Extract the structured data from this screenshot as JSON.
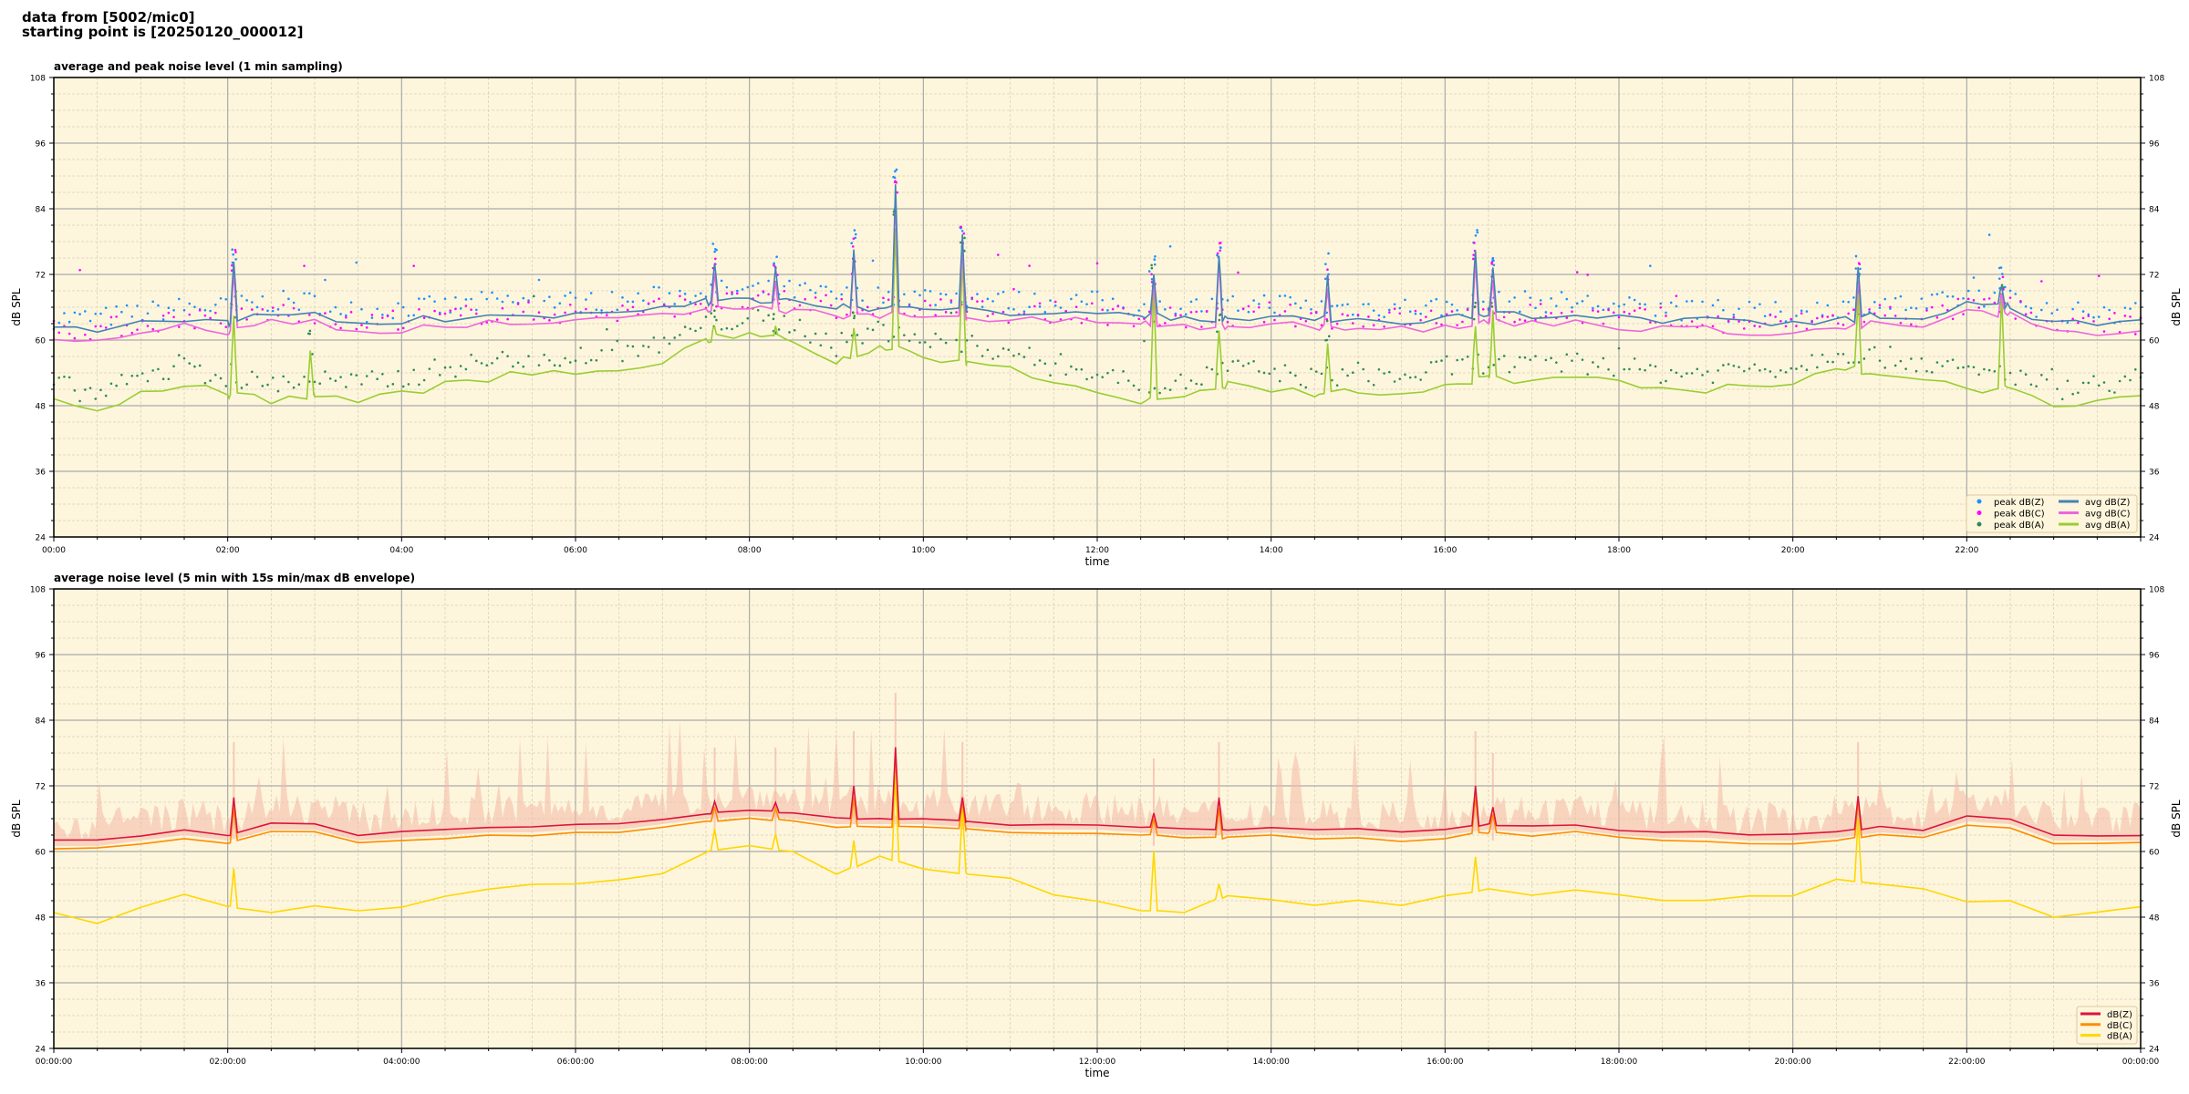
{
  "header": {
    "line1": "data from [5002/mic0]",
    "line2": "starting point is [20250120_000012]"
  },
  "colors": {
    "background": "#fdf6dc",
    "peakZ": "#1e90ff",
    "peakC": "#ff00ff",
    "peakA": "#2e8b57",
    "avgZ": "#4682b4",
    "avgC": "#ee66dd",
    "avgA": "#9acd32",
    "dbZ": "#dc143c",
    "dbC": "#ff8c00",
    "dbA": "#ffd700",
    "envelope": "#f4b8a8"
  },
  "chart_data": [
    {
      "type": "line+scatter",
      "title": "average and peak noise level (1 min sampling)",
      "xlabel": "time",
      "ylabel": "dB SPL",
      "ylim": [
        24,
        108
      ],
      "yticks": [
        "24",
        "36",
        "48",
        "60",
        "72",
        "84",
        "96",
        "108"
      ],
      "xlim_hours": [
        0,
        24
      ],
      "xticks": [
        "00:00",
        "02:00",
        "04:00",
        "06:00",
        "08:00",
        "10:00",
        "12:00",
        "14:00",
        "16:00",
        "18:00",
        "20:00",
        "22:00"
      ],
      "grid": true,
      "legend": "bottom-right",
      "x_step_hours": 0.5,
      "series": [
        {
          "name": "peak dB(Z)",
          "kind": "scatter",
          "color": "#1e90ff",
          "values": [
            64,
            64,
            65,
            66,
            66,
            67,
            67,
            65,
            66,
            66,
            67,
            67,
            67,
            67,
            68,
            69,
            69,
            69,
            68,
            68,
            68,
            68,
            67,
            67,
            67,
            66,
            66,
            66,
            67,
            66,
            66,
            66,
            66,
            67,
            67,
            67,
            66,
            66,
            65,
            65,
            65,
            66,
            67,
            66,
            68,
            68,
            65,
            65,
            65
          ]
        },
        {
          "name": "peak dB(C)",
          "kind": "scatter",
          "color": "#ff00ff",
          "values": [
            62,
            62,
            63,
            64,
            64,
            65,
            65,
            63,
            64,
            64,
            65,
            65,
            65,
            65,
            66,
            67,
            67,
            67,
            66,
            66,
            66,
            66,
            65,
            65,
            65,
            64,
            64,
            64,
            65,
            64,
            64,
            64,
            64,
            65,
            65,
            65,
            64,
            64,
            63,
            63,
            63,
            64,
            65,
            64,
            66,
            66,
            63,
            63,
            63
          ]
        },
        {
          "name": "peak dB(A)",
          "kind": "scatter",
          "color": "#2e8b57",
          "values": [
            52,
            50,
            53,
            55,
            53,
            52,
            53,
            52,
            53,
            55,
            56,
            57,
            57,
            58,
            59,
            63,
            64,
            63,
            59,
            62,
            60,
            59,
            58,
            55,
            54,
            52,
            52,
            55,
            54,
            53,
            54,
            53,
            55,
            56,
            55,
            56,
            55,
            54,
            54,
            55,
            55,
            58,
            57,
            56,
            54,
            54,
            51,
            52,
            53
          ]
        },
        {
          "name": "avg dB(Z)",
          "kind": "line",
          "color": "#4682b4",
          "values": [
            62,
            62,
            63,
            64,
            63,
            65,
            65,
            63,
            63.5,
            64,
            64.5,
            64.5,
            65,
            65,
            66,
            67,
            67.5,
            67,
            66,
            66,
            66,
            65.5,
            65,
            65,
            65,
            64.5,
            64,
            64,
            64.5,
            64,
            64,
            63.5,
            64,
            65,
            64.5,
            65,
            64,
            63.5,
            63.5,
            63,
            63,
            63.5,
            64.5,
            64,
            66.5,
            66,
            63,
            63,
            63
          ],
          "spikes": [
            [
              2.07,
              75
            ],
            [
              7.6,
              74
            ],
            [
              8.3,
              73
            ],
            [
              9.2,
              77
            ],
            [
              9.68,
              88
            ],
            [
              10.45,
              79
            ],
            [
              12.65,
              72
            ],
            [
              13.4,
              76
            ],
            [
              14.65,
              72
            ],
            [
              16.35,
              77
            ],
            [
              16.55,
              73
            ],
            [
              20.75,
              73
            ],
            [
              22.4,
              70
            ]
          ]
        },
        {
          "name": "avg dB(C)",
          "kind": "line",
          "color": "#ee66dd",
          "values": [
            60.5,
            60.5,
            61.5,
            62.5,
            61.5,
            63.5,
            63.5,
            61.5,
            62,
            62.5,
            63,
            63,
            63.5,
            63.5,
            64.5,
            65.5,
            66,
            65.5,
            64.5,
            64.5,
            64.5,
            64,
            63.5,
            63.5,
            63.5,
            63,
            62.5,
            62.5,
            63,
            62.5,
            62.5,
            62,
            62.5,
            63.5,
            63,
            63.5,
            62.5,
            62,
            62,
            61.5,
            61.5,
            62,
            63,
            62.5,
            65,
            64.5,
            61.5,
            61.5,
            61.5
          ],
          "spikes": [
            [
              2.07,
              73
            ],
            [
              7.6,
              72
            ],
            [
              8.3,
              71
            ],
            [
              9.2,
              75
            ],
            [
              9.68,
              86
            ],
            [
              10.45,
              77
            ],
            [
              12.65,
              70
            ],
            [
              13.4,
              74
            ],
            [
              14.65,
              70
            ],
            [
              16.35,
              75
            ],
            [
              16.55,
              71
            ],
            [
              20.75,
              71
            ],
            [
              22.4,
              68
            ]
          ]
        },
        {
          "name": "avg dB(A)",
          "kind": "line",
          "color": "#9acd32",
          "values": [
            49,
            47,
            50,
            52,
            50,
            49,
            50,
            49,
            50,
            52,
            53,
            54,
            54,
            55,
            56,
            60,
            61,
            60,
            56,
            59,
            57,
            56,
            55,
            52,
            51,
            49,
            49,
            52,
            51,
            50,
            51,
            50,
            52,
            53,
            52,
            53,
            52,
            51,
            51,
            52,
            52,
            55,
            54,
            53,
            51,
            51,
            48,
            49,
            50
          ],
          "spikes": [
            [
              2.07,
              65
            ],
            [
              2.95,
              58
            ],
            [
              7.6,
              63
            ],
            [
              8.3,
              62
            ],
            [
              9.2,
              62
            ],
            [
              9.68,
              80
            ],
            [
              10.45,
              75
            ],
            [
              12.65,
              70
            ],
            [
              13.4,
              62
            ],
            [
              14.65,
              60
            ],
            [
              16.35,
              63
            ],
            [
              16.55,
              65
            ],
            [
              20.75,
              68
            ],
            [
              22.4,
              68
            ]
          ]
        }
      ]
    },
    {
      "type": "line",
      "title": "average noise level (5 min with 15s min/max dB envelope)",
      "xlabel": "time",
      "ylabel": "dB SPL",
      "ylim": [
        24,
        108
      ],
      "yticks": [
        "24",
        "36",
        "48",
        "60",
        "72",
        "84",
        "96",
        "108"
      ],
      "xlim_hours": [
        0,
        24
      ],
      "xticks": [
        "00:00:00",
        "02:00:00",
        "04:00:00",
        "06:00:00",
        "08:00:00",
        "10:00:00",
        "12:00:00",
        "14:00:00",
        "16:00:00",
        "18:00:00",
        "20:00:00",
        "22:00:00",
        "00:00:00"
      ],
      "grid": true,
      "legend": "bottom-right",
      "x_step_hours": 0.5,
      "envelope_max_offset_db": 6,
      "series": [
        {
          "name": "dB(Z)",
          "color": "#dc143c",
          "values": [
            62,
            62,
            63,
            64,
            63,
            65,
            65,
            63,
            63.5,
            64,
            64.5,
            64.5,
            65,
            65,
            66,
            67,
            67.5,
            67,
            66,
            66,
            66,
            65.5,
            65,
            65,
            65,
            64.5,
            64,
            64,
            64.5,
            64,
            64,
            63.5,
            64,
            65,
            64.5,
            65,
            64,
            63.5,
            63.5,
            63,
            63,
            63.5,
            64.5,
            64,
            66.5,
            66,
            63,
            63,
            63
          ],
          "spikes": [
            [
              2.07,
              70
            ],
            [
              7.6,
              69
            ],
            [
              8.3,
              69
            ],
            [
              9.2,
              72
            ],
            [
              9.68,
              79
            ],
            [
              10.45,
              70
            ],
            [
              12.65,
              67
            ],
            [
              13.4,
              70
            ],
            [
              16.35,
              72
            ],
            [
              16.55,
              68
            ],
            [
              20.75,
              70
            ]
          ]
        },
        {
          "name": "dB(C)",
          "color": "#ff8c00",
          "values": [
            60.5,
            60.5,
            61.5,
            62.5,
            61.5,
            63.5,
            63.5,
            61.5,
            62,
            62.5,
            63,
            63,
            63.5,
            63.5,
            64.5,
            65.5,
            66,
            65.5,
            64.5,
            64.5,
            64.5,
            64,
            63.5,
            63.5,
            63.5,
            63,
            62.5,
            62.5,
            63,
            62.5,
            62.5,
            62,
            62.5,
            63.5,
            63,
            63.5,
            62.5,
            62,
            62,
            61.5,
            61.5,
            62,
            63,
            62.5,
            65,
            64.5,
            61.5,
            61.5,
            61.5
          ],
          "spikes": [
            [
              2.07,
              68
            ],
            [
              7.6,
              68
            ],
            [
              8.3,
              68
            ],
            [
              9.2,
              70
            ],
            [
              9.68,
              78
            ],
            [
              10.45,
              69
            ],
            [
              12.65,
              66
            ],
            [
              13.4,
              68
            ],
            [
              16.35,
              70
            ],
            [
              16.55,
              67
            ],
            [
              20.75,
              69
            ]
          ]
        },
        {
          "name": "dB(A)",
          "color": "#ffd700",
          "values": [
            49,
            47,
            50,
            52,
            50,
            49,
            50,
            49,
            50,
            52,
            53,
            54,
            54,
            55,
            56,
            60,
            61,
            60,
            56,
            59,
            57,
            56,
            55,
            52,
            51,
            49,
            49,
            52,
            51,
            50,
            51,
            50,
            52,
            53,
            52,
            53,
            52,
            51,
            51,
            52,
            52,
            55,
            54,
            53,
            51,
            51,
            48,
            49,
            50
          ],
          "spikes": [
            [
              2.07,
              57
            ],
            [
              7.6,
              64
            ],
            [
              8.3,
              63
            ],
            [
              9.2,
              62
            ],
            [
              9.68,
              74
            ],
            [
              10.45,
              68
            ],
            [
              12.65,
              60
            ],
            [
              13.4,
              54
            ],
            [
              16.35,
              59
            ],
            [
              20.75,
              66
            ]
          ]
        }
      ]
    }
  ]
}
